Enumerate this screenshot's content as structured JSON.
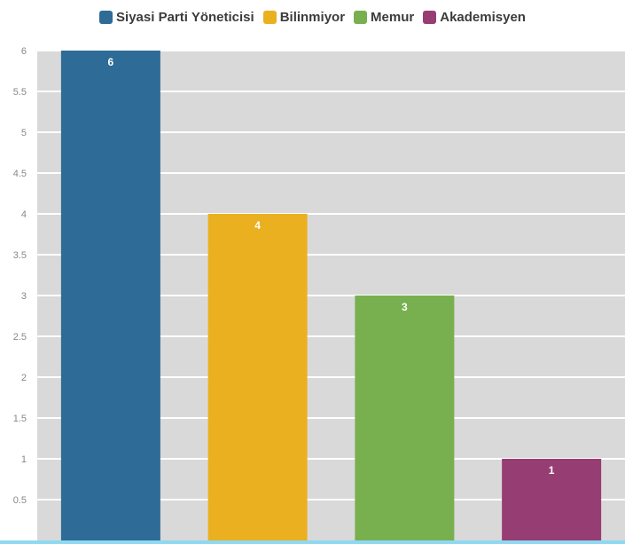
{
  "chart_data": {
    "type": "bar",
    "categories": [
      "Siyasi Parti Yöneticisi",
      "Bilinmiyor",
      "Memur",
      "Akademisyen"
    ],
    "values": [
      6,
      4,
      3,
      1
    ],
    "colors": [
      "#2e6b96",
      "#eab01f",
      "#78b04f",
      "#963d73"
    ],
    "data_labels": [
      "6",
      "4",
      "3",
      "1"
    ],
    "legend": [
      "Siyasi Parti Yöneticisi",
      "Bilinmiyor",
      "Memur",
      "Akademisyen"
    ],
    "legend_position": "top-center",
    "ylim": [
      0,
      6
    ],
    "yticks": [
      "0.5",
      "1",
      "1.5",
      "2",
      "2.5",
      "3",
      "3.5",
      "4",
      "4.5",
      "5",
      "5.5",
      "6"
    ],
    "grid": true,
    "background": "#d9d9d9",
    "title": "",
    "xlabel": "",
    "ylabel": ""
  }
}
